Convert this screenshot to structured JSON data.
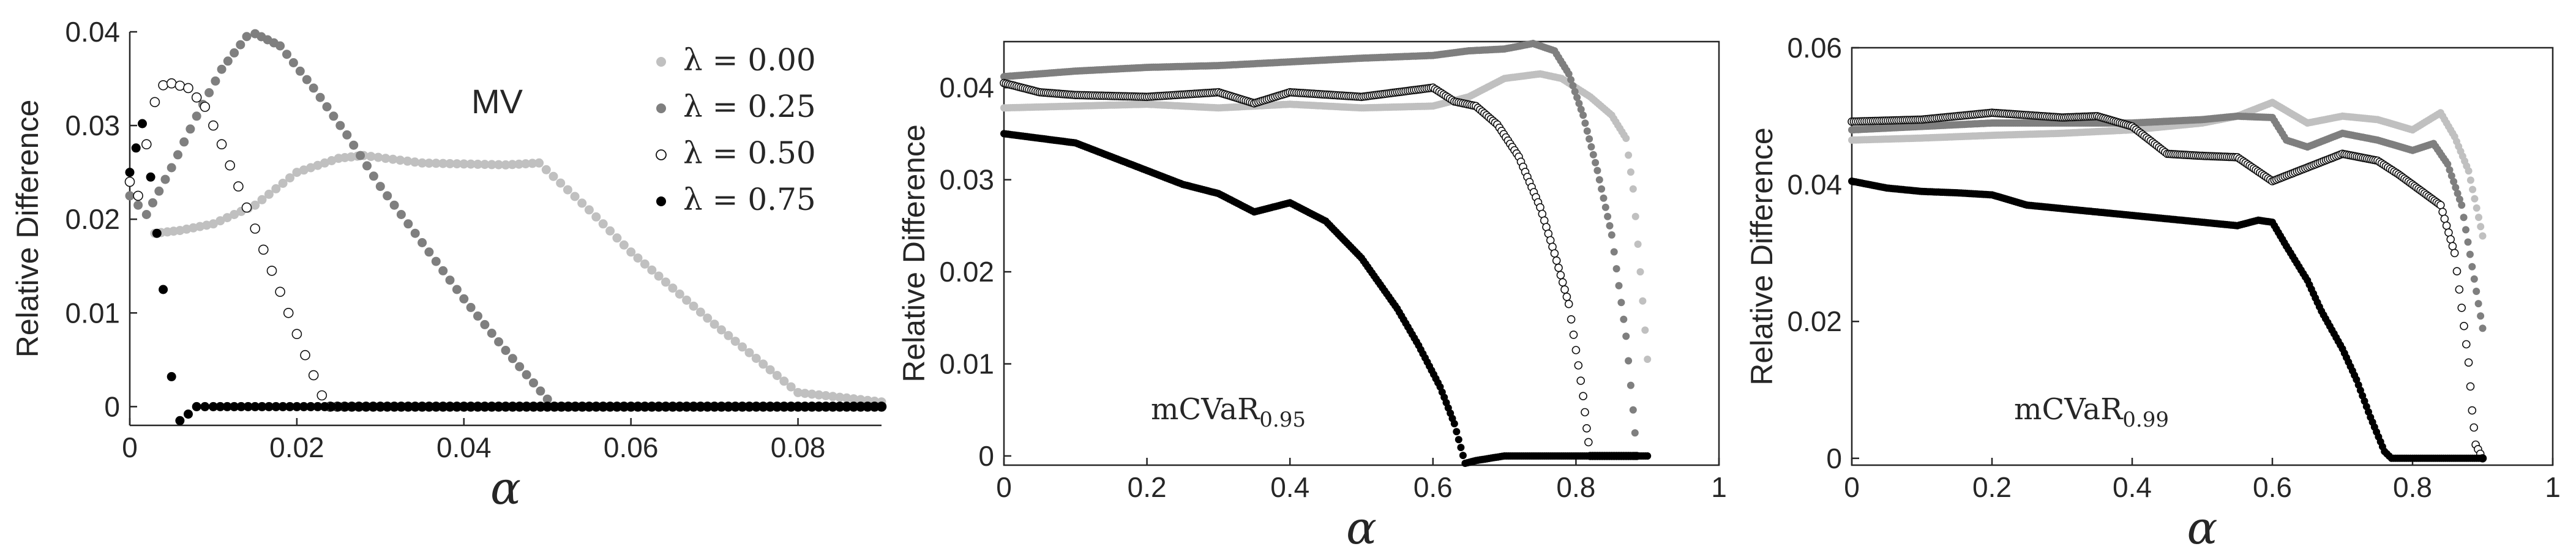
{
  "figure": {
    "colors": {
      "lambda_0.00": "#c0c0c0",
      "lambda_0.25": "#7f7f7f",
      "lambda_0.50": "#ffffff",
      "lambda_0.75": "#000000",
      "axes": "#262626"
    }
  },
  "chart_data": [
    {
      "type": "scatter",
      "annotation": "MV",
      "xlabel": "α",
      "ylabel": "Relative Difference",
      "xlim": [
        0,
        0.09
      ],
      "ylim": [
        -0.002,
        0.04
      ],
      "xticks": [
        "0",
        "0.02",
        "0.04",
        "0.06",
        "0.08"
      ],
      "yticks": [
        "0",
        "0.01",
        "0.02",
        "0.03",
        "0.04"
      ],
      "legend_position": "top-right",
      "legend": [
        "λ = 0.00",
        "λ = 0.25",
        "λ = 0.50",
        "λ = 0.75"
      ],
      "series": [
        {
          "name": "λ = 0.00",
          "x": [
            0.003,
            0.006,
            0.01,
            0.015,
            0.02,
            0.025,
            0.028,
            0.035,
            0.045,
            0.049,
            0.055,
            0.06,
            0.07,
            0.08,
            0.085,
            0.09
          ],
          "y": [
            0.0185,
            0.0188,
            0.0195,
            0.0215,
            0.025,
            0.0265,
            0.0268,
            0.026,
            0.0258,
            0.026,
            0.021,
            0.0165,
            0.0088,
            0.0015,
            0.001,
            0.0005
          ]
        },
        {
          "name": "λ = 0.25",
          "x": [
            0.0,
            0.002,
            0.005,
            0.008,
            0.011,
            0.014,
            0.015,
            0.018,
            0.022,
            0.026,
            0.03,
            0.035,
            0.04,
            0.045,
            0.05,
            0.051,
            0.06,
            0.07,
            0.08,
            0.09
          ],
          "y": [
            0.0225,
            0.0205,
            0.0255,
            0.031,
            0.036,
            0.0395,
            0.0398,
            0.0385,
            0.034,
            0.029,
            0.0235,
            0.0175,
            0.0115,
            0.006,
            0.0008,
            0.0,
            0.0,
            0.0,
            0.0,
            0.0
          ]
        },
        {
          "name": "λ = 0.50",
          "x": [
            0.0,
            0.001,
            0.002,
            0.003,
            0.004,
            0.005,
            0.007,
            0.009,
            0.011,
            0.013,
            0.015,
            0.017,
            0.019,
            0.021,
            0.023,
            0.024,
            0.03,
            0.04,
            0.05,
            0.06,
            0.07,
            0.08,
            0.09
          ],
          "y": [
            0.024,
            0.0225,
            0.028,
            0.0325,
            0.0343,
            0.0345,
            0.034,
            0.032,
            0.028,
            0.0235,
            0.019,
            0.0145,
            0.01,
            0.0055,
            0.0012,
            0.0,
            0.0,
            0.0,
            0.0,
            0.0,
            0.0,
            0.0,
            0.0
          ]
        },
        {
          "name": "λ = 0.75",
          "x": [
            0.0,
            0.0015,
            0.0025,
            0.004,
            0.005,
            0.006,
            0.007,
            0.008,
            0.01,
            0.02,
            0.03,
            0.04,
            0.05,
            0.06,
            0.07,
            0.08,
            0.09
          ],
          "y": [
            0.025,
            0.0302,
            0.0245,
            0.0125,
            0.0032,
            -0.0015,
            -0.0008,
            0.0,
            0.0,
            0.0,
            0.0,
            0.0,
            0.0,
            0.0,
            0.0,
            0.0,
            0.0
          ]
        }
      ]
    },
    {
      "type": "scatter",
      "annotation": "mCVaR",
      "annotation_subscript": "0.95",
      "xlabel": "α",
      "ylabel": "Relative Difference",
      "xlim": [
        0,
        1
      ],
      "ylim": [
        -0.001,
        0.045
      ],
      "xticks": [
        "0",
        "0.2",
        "0.4",
        "0.6",
        "0.8",
        "1"
      ],
      "yticks": [
        "0",
        "0.01",
        "0.02",
        "0.03",
        "0.04"
      ],
      "series": [
        {
          "name": "λ = 0.00",
          "x": [
            0.0,
            0.1,
            0.2,
            0.3,
            0.4,
            0.5,
            0.6,
            0.65,
            0.7,
            0.75,
            0.78,
            0.82,
            0.85,
            0.87,
            0.88,
            0.89,
            0.9
          ],
          "y": [
            0.0378,
            0.038,
            0.0382,
            0.0378,
            0.0382,
            0.0378,
            0.038,
            0.039,
            0.041,
            0.0415,
            0.041,
            0.039,
            0.037,
            0.0345,
            0.029,
            0.02,
            0.0105
          ]
        },
        {
          "name": "λ = 0.25",
          "x": [
            0.0,
            0.1,
            0.2,
            0.3,
            0.4,
            0.5,
            0.6,
            0.65,
            0.7,
            0.74,
            0.77,
            0.79,
            0.81,
            0.83,
            0.85,
            0.86,
            0.87,
            0.88,
            0.885
          ],
          "y": [
            0.0412,
            0.0418,
            0.0422,
            0.0424,
            0.0428,
            0.0432,
            0.0435,
            0.044,
            0.0442,
            0.0448,
            0.044,
            0.0415,
            0.037,
            0.031,
            0.024,
            0.0185,
            0.013,
            0.005,
            0.0
          ]
        },
        {
          "name": "λ = 0.50",
          "x": [
            0.0,
            0.05,
            0.1,
            0.2,
            0.3,
            0.35,
            0.4,
            0.5,
            0.55,
            0.6,
            0.63,
            0.66,
            0.69,
            0.72,
            0.75,
            0.77,
            0.79,
            0.8,
            0.81,
            0.815,
            0.82,
            0.83,
            0.84,
            0.85,
            0.86,
            0.87,
            0.88,
            0.885
          ],
          "y": [
            0.0405,
            0.0395,
            0.0392,
            0.039,
            0.0395,
            0.0383,
            0.0395,
            0.039,
            0.0395,
            0.04,
            0.0385,
            0.038,
            0.036,
            0.0325,
            0.027,
            0.022,
            0.0165,
            0.0115,
            0.0065,
            0.003,
            0.0,
            0.0,
            0.0,
            0.0,
            0.0,
            0.0,
            0.0,
            0.0
          ]
        },
        {
          "name": "λ = 0.75",
          "x": [
            0.0,
            0.05,
            0.1,
            0.15,
            0.2,
            0.25,
            0.3,
            0.35,
            0.4,
            0.45,
            0.5,
            0.55,
            0.58,
            0.61,
            0.63,
            0.645,
            0.66,
            0.7,
            0.75,
            0.8,
            0.85,
            0.9
          ],
          "y": [
            0.035,
            0.0345,
            0.034,
            0.0325,
            0.031,
            0.0295,
            0.0285,
            0.0265,
            0.0275,
            0.0255,
            0.0215,
            0.016,
            0.012,
            0.0075,
            0.0035,
            -0.0008,
            -0.0005,
            0.0,
            0.0,
            0.0,
            0.0,
            0.0
          ]
        }
      ]
    },
    {
      "type": "scatter",
      "annotation": "mCVaR",
      "annotation_subscript": "0.99",
      "xlabel": "α",
      "ylabel": "Relative Difference",
      "xlim": [
        0,
        1
      ],
      "ylim": [
        -0.001,
        0.06
      ],
      "xticks": [
        "0",
        "0.2",
        "0.4",
        "0.6",
        "0.8",
        "1"
      ],
      "yticks": [
        "0",
        "0.02",
        "0.04",
        "0.06"
      ],
      "series": [
        {
          "name": "λ = 0.00",
          "x": [
            0.0,
            0.1,
            0.2,
            0.3,
            0.4,
            0.5,
            0.55,
            0.6,
            0.65,
            0.7,
            0.75,
            0.8,
            0.84,
            0.86,
            0.88,
            0.9
          ],
          "y": [
            0.0465,
            0.0468,
            0.0472,
            0.0475,
            0.048,
            0.049,
            0.05,
            0.052,
            0.049,
            0.05,
            0.0495,
            0.048,
            0.0505,
            0.047,
            0.042,
            0.0325
          ]
        },
        {
          "name": "λ = 0.25",
          "x": [
            0.0,
            0.1,
            0.2,
            0.3,
            0.4,
            0.5,
            0.55,
            0.6,
            0.62,
            0.65,
            0.7,
            0.75,
            0.8,
            0.83,
            0.85,
            0.87,
            0.9
          ],
          "y": [
            0.048,
            0.0485,
            0.049,
            0.049,
            0.049,
            0.0495,
            0.05,
            0.0498,
            0.0465,
            0.0455,
            0.0475,
            0.0465,
            0.045,
            0.046,
            0.043,
            0.037,
            0.019
          ]
        },
        {
          "name": "λ = 0.50",
          "x": [
            0.0,
            0.1,
            0.2,
            0.3,
            0.35,
            0.4,
            0.45,
            0.5,
            0.55,
            0.6,
            0.65,
            0.7,
            0.75,
            0.78,
            0.8,
            0.82,
            0.84,
            0.86,
            0.87,
            0.88,
            0.885,
            0.89,
            0.9
          ],
          "y": [
            0.0492,
            0.0495,
            0.0505,
            0.0498,
            0.05,
            0.0485,
            0.0445,
            0.0442,
            0.044,
            0.0405,
            0.0425,
            0.0445,
            0.0435,
            0.0415,
            0.04,
            0.0385,
            0.037,
            0.03,
            0.022,
            0.014,
            0.007,
            0.002,
            0.0
          ]
        },
        {
          "name": "λ = 0.75",
          "x": [
            0.0,
            0.05,
            0.1,
            0.15,
            0.2,
            0.25,
            0.3,
            0.35,
            0.4,
            0.45,
            0.5,
            0.55,
            0.58,
            0.6,
            0.62,
            0.65,
            0.67,
            0.7,
            0.72,
            0.74,
            0.76,
            0.77,
            0.8,
            0.85,
            0.9
          ],
          "y": [
            0.0405,
            0.0395,
            0.039,
            0.0388,
            0.0385,
            0.037,
            0.0365,
            0.036,
            0.0355,
            0.035,
            0.0345,
            0.034,
            0.0348,
            0.0345,
            0.031,
            0.026,
            0.0215,
            0.016,
            0.0115,
            0.006,
            0.001,
            0.0,
            0.0,
            0.0,
            0.0
          ]
        }
      ]
    }
  ]
}
